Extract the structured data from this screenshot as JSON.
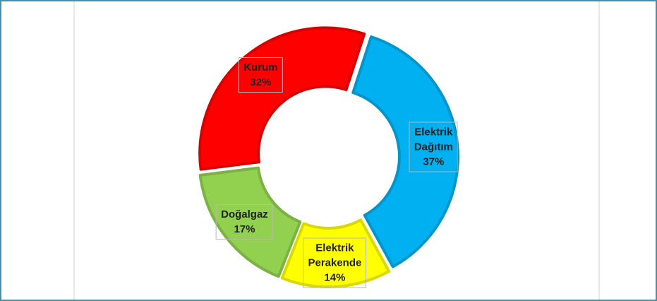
{
  "chart_data": {
    "type": "pie",
    "categories": [
      "Elektrik Dağıtım",
      "Elektrik Perakende",
      "Doğalgaz",
      "Kurum"
    ],
    "values": [
      37,
      14,
      17,
      32
    ],
    "value_labels": [
      "37%",
      "14%",
      "17%",
      "32%"
    ],
    "colors": [
      "#00b0f0",
      "#ffff00",
      "#92d050",
      "#ff0000"
    ],
    "donut": true
  }
}
